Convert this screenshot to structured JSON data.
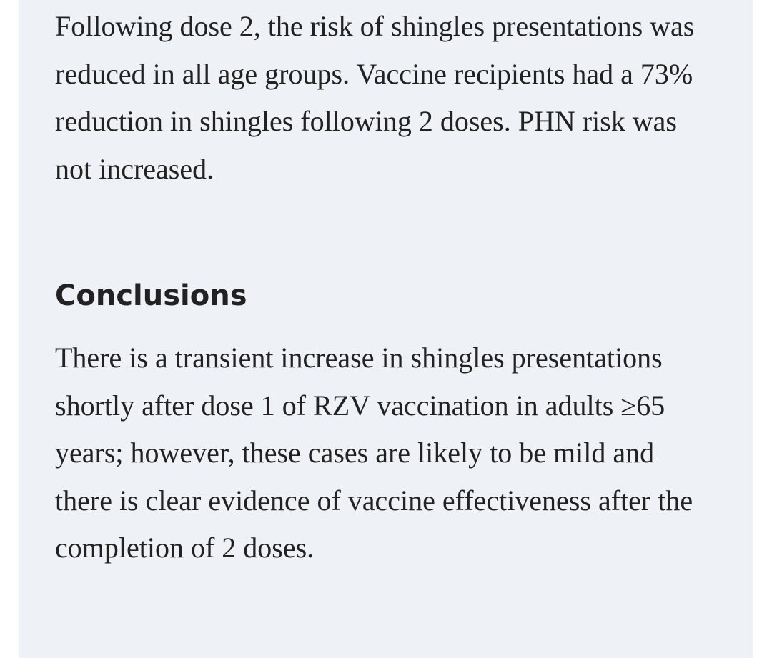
{
  "results_paragraph": "Following dose 2, the risk of shingles presentations was reduced in all age groups. Vaccine recipients had a 73% reduction in shingles following 2 doses. PHN risk was not increased.",
  "conclusions": {
    "heading": "Conclusions",
    "text": "There is a transient increase in shingles presentations shortly after dose 1 of RZV vaccination in adults ≥65 years; however, these cases are likely to be mild and there is clear evidence of vaccine effectiveness after the completion of 2 doses."
  }
}
